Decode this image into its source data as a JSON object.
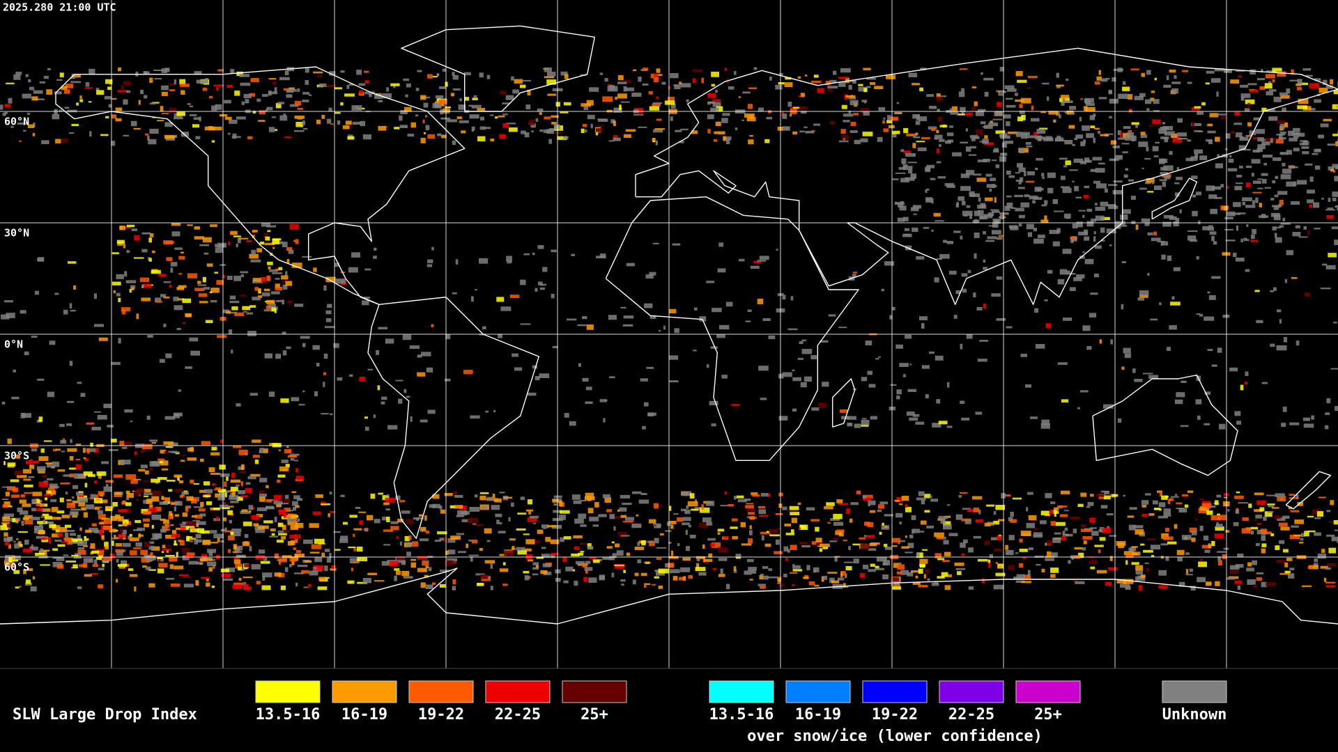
{
  "header": {
    "timestamp": "2025.280 21:00 UTC"
  },
  "map": {
    "lat_labels": [
      "60°N",
      "30°N",
      "0°N",
      "30°S",
      "60°S"
    ]
  },
  "legend": {
    "title": "SLW Large Drop Index",
    "groups": [
      {
        "items": [
          {
            "label": "13.5-16",
            "color": "#ffff00"
          },
          {
            "label": "16-19",
            "color": "#ff9b00"
          },
          {
            "label": "19-22",
            "color": "#ff5a00"
          },
          {
            "label": "22-25",
            "color": "#ee0000"
          },
          {
            "label": "25+",
            "color": "#660000"
          }
        ]
      },
      {
        "items": [
          {
            "label": "13.5-16",
            "color": "#00ffff"
          },
          {
            "label": "16-19",
            "color": "#0080ff"
          },
          {
            "label": "19-22",
            "color": "#0000ff"
          },
          {
            "label": "22-25",
            "color": "#7f00e6"
          },
          {
            "label": "25+",
            "color": "#cc00cc"
          }
        ],
        "note": "over snow/ice (lower confidence)"
      },
      {
        "items": [
          {
            "label": "Unknown",
            "color": "#808080"
          }
        ]
      }
    ]
  }
}
